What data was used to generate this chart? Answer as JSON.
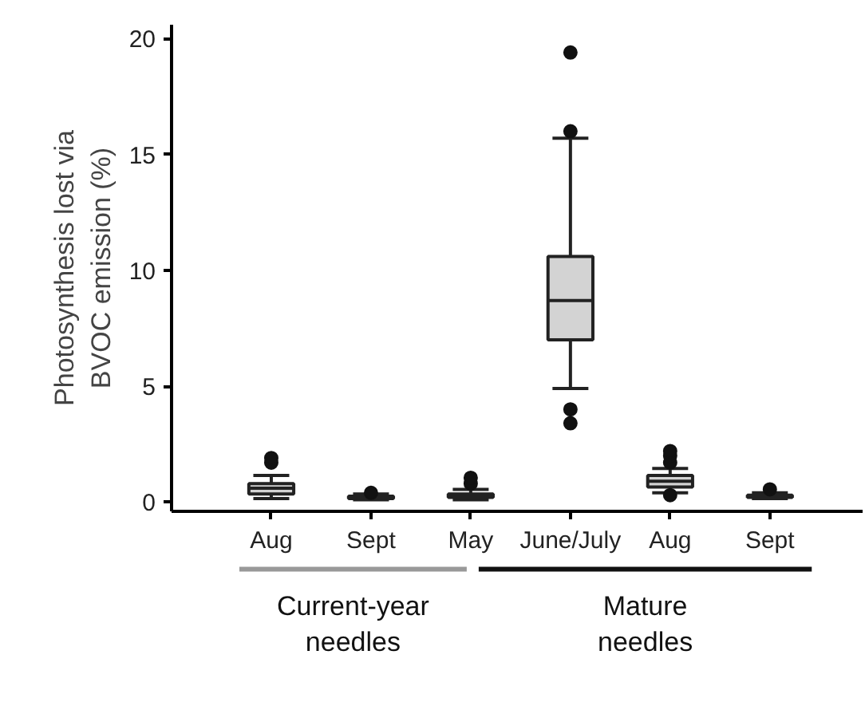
{
  "chart_data": {
    "type": "box",
    "ylabel": "Photosynthesis lost via BVOC emission (%)",
    "categories": [
      "Aug",
      "Sept",
      "May",
      "June/July",
      "Aug",
      "Sept"
    ],
    "boxes": [
      {
        "low": 0.15,
        "q1": 0.35,
        "median": 0.6,
        "q3": 0.8,
        "high": 1.15,
        "outliers": [
          1.7,
          1.9
        ]
      },
      {
        "low": 0.1,
        "q1": 0.15,
        "median": 0.2,
        "q3": 0.25,
        "high": 0.35,
        "outliers": [
          0.4
        ]
      },
      {
        "low": 0.1,
        "q1": 0.2,
        "median": 0.25,
        "q3": 0.35,
        "high": 0.55,
        "outliers": [
          0.8,
          1.05
        ]
      },
      {
        "low": 4.9,
        "q1": 7.0,
        "median": 8.7,
        "q3": 10.6,
        "high": 15.7,
        "outliers": [
          3.4,
          4.0,
          16.0,
          19.4
        ]
      },
      {
        "low": 0.4,
        "q1": 0.65,
        "median": 0.9,
        "q3": 1.15,
        "high": 1.45,
        "outliers": [
          0.3,
          1.7,
          2.0,
          2.2
        ]
      },
      {
        "low": 0.15,
        "q1": 0.2,
        "median": 0.25,
        "q3": 0.3,
        "high": 0.4,
        "outliers": [
          0.55
        ]
      }
    ],
    "color": "#d3d3d3",
    "ylim": [
      -0.4,
      20.6
    ],
    "yticks": [
      0,
      5,
      10,
      15,
      20
    ],
    "grid": false,
    "annotations": [
      "Current-year needles",
      "Mature needles"
    ]
  }
}
